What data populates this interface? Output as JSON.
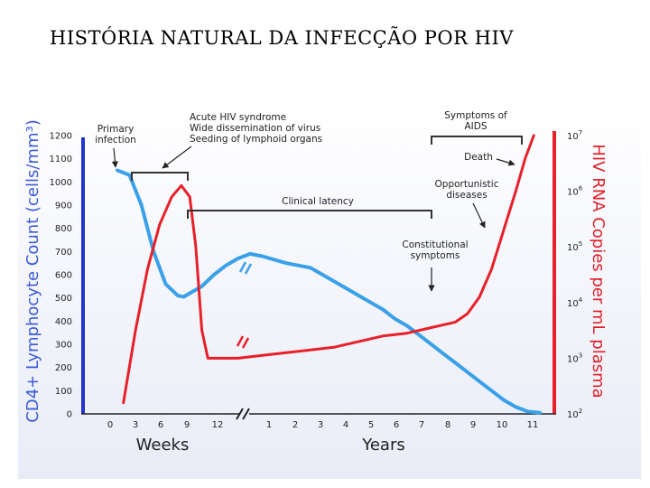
{
  "slide": {
    "title": "HISTÓRIA NATURAL DA INFECÇÃO POR HIV"
  },
  "colors": {
    "cd4": "#3aa0e8",
    "rna": "#e8202a",
    "left_axis": "#2233cc",
    "right_axis": "#e8202a",
    "bracket": "#333333"
  },
  "chart_data": {
    "type": "line",
    "xlabel_weeks": "Weeks",
    "xlabel_years": "Years",
    "ylabel_left": "CD4+ Lymphocyte Count (cells/mm³)",
    "ylabel_right": "HIV RNA Copies per mL plasma",
    "ylim_left": [
      0,
      1200
    ],
    "ylim_right_log10": [
      2,
      7
    ],
    "x_ticks": [
      "0",
      "3",
      "6",
      "9",
      "12",
      "1",
      "2",
      "3",
      "4",
      "5",
      "6",
      "7",
      "8",
      "9",
      "10",
      "11"
    ],
    "left_ticks": [
      "0",
      "100",
      "200",
      "300",
      "400",
      "500",
      "600",
      "700",
      "800",
      "900",
      "1000",
      "1100",
      "1200"
    ],
    "right_ticks": [
      {
        "base": "10",
        "exp": "2"
      },
      {
        "base": "10",
        "exp": "3"
      },
      {
        "base": "10",
        "exp": "4"
      },
      {
        "base": "10",
        "exp": "5"
      },
      {
        "base": "10",
        "exp": "6"
      },
      {
        "base": "10",
        "exp": "7"
      }
    ],
    "series": [
      {
        "key": "cd4",
        "axis": "left",
        "values": [
          [
            0,
            1050
          ],
          [
            1,
            1030
          ],
          [
            2,
            900
          ],
          [
            3,
            700
          ],
          [
            4,
            560
          ],
          [
            5,
            510
          ],
          [
            5.5,
            505
          ],
          [
            6,
            520
          ],
          [
            7,
            550
          ],
          [
            8,
            600
          ],
          [
            9,
            640
          ],
          [
            10,
            670
          ],
          [
            11,
            690
          ],
          [
            12,
            680
          ],
          [
            14,
            650
          ],
          [
            16,
            630
          ],
          [
            17,
            600
          ],
          [
            18,
            570
          ],
          [
            19,
            540
          ],
          [
            20,
            510
          ],
          [
            21,
            480
          ],
          [
            22,
            450
          ],
          [
            23,
            410
          ],
          [
            24,
            380
          ],
          [
            25,
            340
          ],
          [
            26,
            300
          ],
          [
            27,
            260
          ],
          [
            28,
            220
          ],
          [
            29,
            180
          ],
          [
            30,
            140
          ],
          [
            31,
            100
          ],
          [
            32,
            60
          ],
          [
            33,
            30
          ],
          [
            34,
            10
          ],
          [
            35,
            5
          ]
        ]
      },
      {
        "key": "rna",
        "axis": "right",
        "values": [
          [
            0.5,
            2.2
          ],
          [
            1.5,
            3.5
          ],
          [
            2.5,
            4.6
          ],
          [
            3.5,
            5.4
          ],
          [
            4.5,
            5.9
          ],
          [
            5.3,
            6.1
          ],
          [
            6,
            5.9
          ],
          [
            6.5,
            5.0
          ],
          [
            7,
            3.5
          ],
          [
            7.5,
            3.0
          ],
          [
            8.5,
            3.0
          ],
          [
            10,
            3.0
          ],
          [
            12,
            3.05
          ],
          [
            14,
            3.1
          ],
          [
            16,
            3.15
          ],
          [
            18,
            3.2
          ],
          [
            20,
            3.3
          ],
          [
            22,
            3.4
          ],
          [
            24,
            3.45
          ],
          [
            26,
            3.55
          ],
          [
            28,
            3.65
          ],
          [
            29,
            3.8
          ],
          [
            30,
            4.1
          ],
          [
            31,
            4.6
          ],
          [
            32,
            5.3
          ],
          [
            33,
            6.0
          ],
          [
            33.8,
            6.6
          ],
          [
            34.5,
            7.0
          ]
        ]
      }
    ],
    "annotations": {
      "primary_infection": [
        "Primary",
        "infection"
      ],
      "acute": [
        "Acute HIV syndrome",
        "Wide dissemination of virus",
        "Seeding of lymphoid organs"
      ],
      "clinical_latency": "Clinical latency",
      "symptoms_aids": [
        "Symptoms of",
        "AIDS"
      ],
      "death": "Death",
      "opportunistic": [
        "Opportunistic",
        "diseases"
      ],
      "constitutional": [
        "Constitutional",
        "symptoms"
      ]
    }
  }
}
